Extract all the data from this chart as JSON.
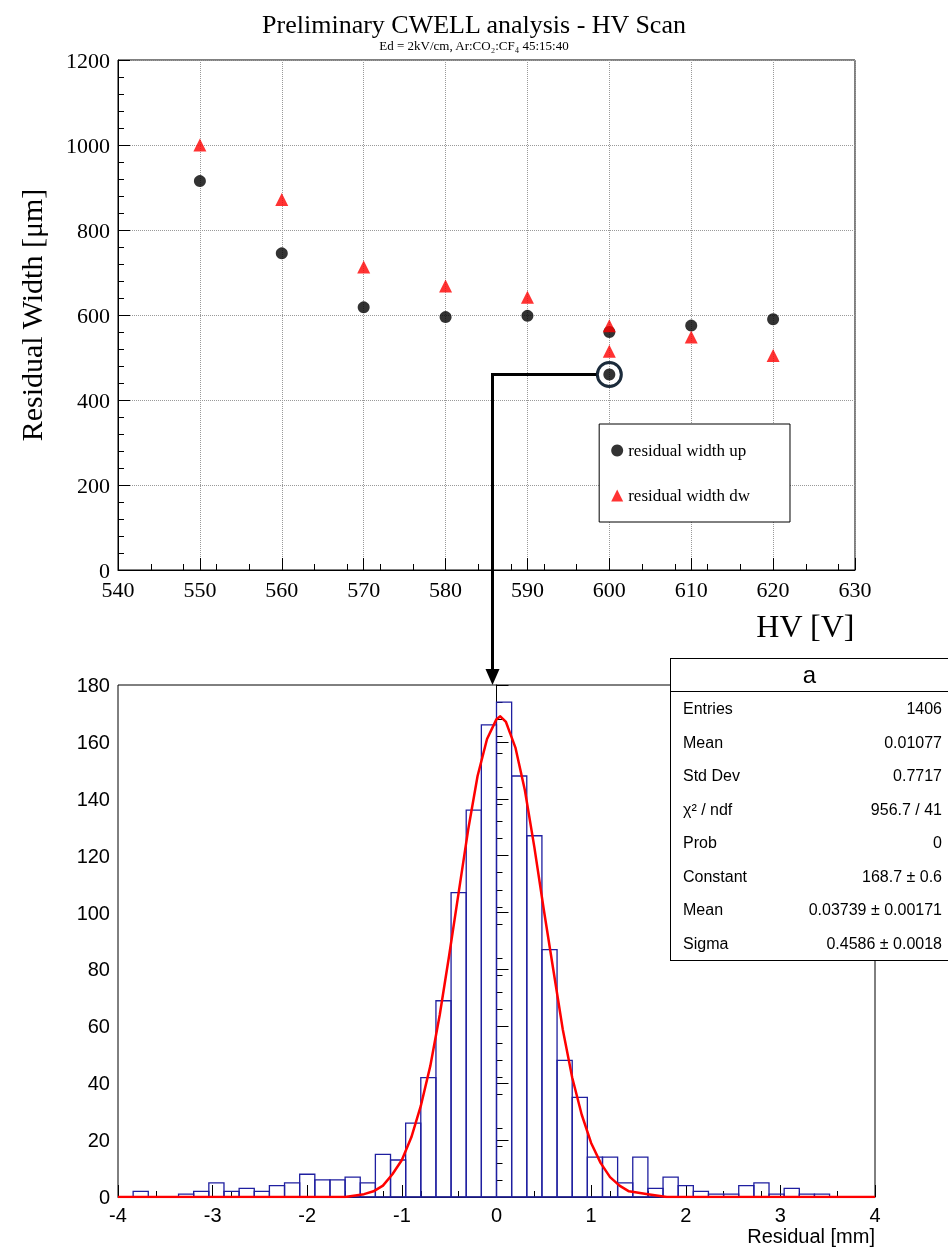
{
  "chart_data": [
    {
      "type": "scatter",
      "title": "Preliminary CWELL analysis - HV Scan",
      "subtitle": "Ed = 2kV/cm, Ar:CO₂:CF₄ 45:15:40",
      "xlabel": "HV [V]",
      "ylabel": "Residual Width [μm]",
      "xlim": [
        540,
        630
      ],
      "xticks": [
        540,
        550,
        560,
        570,
        580,
        590,
        600,
        610,
        620,
        630
      ],
      "ylim": [
        0,
        1200
      ],
      "yticks": [
        0,
        200,
        400,
        600,
        800,
        1000,
        1200
      ],
      "grid": true,
      "legend": "bottom right",
      "series": [
        {
          "name": "residual width up",
          "color": "#000000",
          "marker": "circle",
          "x": [
            550,
            560,
            570,
            580,
            590,
            600,
            610,
            620
          ],
          "values": [
            915,
            745,
            618,
            595,
            598,
            560,
            575,
            590
          ]
        },
        {
          "name": "residual width dw",
          "color": "#ff0000",
          "marker": "triangle",
          "x": [
            550,
            560,
            570,
            580,
            590,
            600,
            600,
            610,
            620
          ],
          "values": [
            1000,
            872,
            713,
            668,
            642,
            575,
            515,
            548,
            505
          ]
        },
        {
          "color": "#000000",
          "marker": "circle",
          "x": [
            600
          ],
          "values": [
            460
          ]
        }
      ]
    },
    {
      "type": "histogram",
      "xlabel": "Residual [mm]",
      "xlim": [
        -4,
        4
      ],
      "xticks": [
        -4,
        -3,
        -2,
        -1,
        0,
        1,
        2,
        3,
        4
      ],
      "ylim": [
        0,
        180
      ],
      "yticks": [
        0,
        20,
        40,
        60,
        80,
        100,
        120,
        140,
        160,
        180
      ],
      "series": [
        {
          "type": "histogram",
          "color": "#1f1fa0",
          "bins": [
            -4,
            -3.84,
            -3.68,
            -3.52,
            -3.36,
            -3.2,
            -3.04,
            -2.88,
            -2.72,
            -2.56,
            -2.4,
            -2.24,
            -2.08,
            -1.92,
            -1.76,
            -1.6,
            -1.44,
            -1.28,
            -1.12,
            -0.96,
            -0.8,
            -0.64,
            -0.48,
            -0.32,
            -0.16,
            0,
            0.16,
            0.32,
            0.48,
            0.64,
            0.8,
            0.96,
            1.12,
            1.28,
            1.44,
            1.6,
            1.76,
            1.92,
            2.08,
            2.24,
            2.4,
            2.56,
            2.72,
            2.88,
            3.04,
            3.2,
            3.36,
            3.52,
            3.68,
            3.84,
            4
          ],
          "values": [
            0,
            2,
            0,
            0,
            1,
            2,
            5,
            2,
            3,
            2,
            4,
            5,
            8,
            6,
            6,
            7,
            5,
            15,
            13,
            26,
            42,
            69,
            107,
            136,
            166,
            174,
            148,
            127,
            87,
            48,
            35,
            14,
            14,
            5,
            14,
            3,
            7,
            4,
            2,
            1,
            1,
            4,
            5,
            1,
            3,
            1,
            1,
            0,
            0,
            0
          ]
        },
        {
          "type": "line",
          "color": "#ff0000",
          "x": [
            -4,
            -2,
            -1.6,
            -1.4,
            -1.3,
            -1.2,
            -1.1,
            -1,
            -0.9,
            -0.8,
            -0.7,
            -0.6,
            -0.5,
            -0.4,
            -0.3,
            -0.2,
            -0.1,
            0,
            0.04,
            0.1,
            0.2,
            0.3,
            0.4,
            0.5,
            0.6,
            0.7,
            0.8,
            0.9,
            1,
            1.1,
            1.2,
            1.3,
            1.4,
            1.6,
            1.8,
            2,
            4
          ],
          "values": [
            0,
            0,
            0,
            1,
            2,
            4,
            8,
            13,
            21,
            32,
            46,
            64,
            85,
            107,
            129,
            148,
            161,
            168,
            169,
            167,
            158,
            143,
            123,
            101,
            80,
            59,
            42,
            29,
            19,
            12,
            7,
            4,
            2,
            1,
            0,
            0,
            0
          ]
        }
      ],
      "annotations": [
        "a",
        "Entries",
        "1406",
        "Mean",
        "0.01077",
        "Std Dev",
        "0.7717",
        "χ² / ndf",
        "956.7 / 41",
        "Prob",
        "0",
        "Constant",
        "168.7 ± 0.6",
        "Mean",
        "0.03739 ± 0.00171",
        "Sigma",
        "0.4586 ± 0.0018"
      ]
    }
  ]
}
